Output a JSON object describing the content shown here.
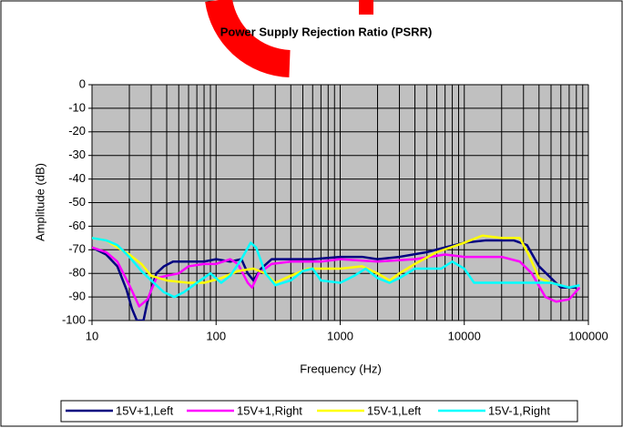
{
  "chart_data": {
    "type": "line",
    "title": "Power Supply Rejection Ratio (PSRR)",
    "x_label": "Frequency (Hz)",
    "y_label": "Amplitude (dB)",
    "xscale": "log",
    "xlim": [
      10,
      100000
    ],
    "xticks": [
      10,
      100,
      1000,
      10000,
      100000
    ],
    "ylim": [
      -100,
      0
    ],
    "yticks": [
      0,
      -10,
      -20,
      -30,
      -40,
      -50,
      -60,
      -70,
      -80,
      -90,
      -100
    ],
    "grid": true,
    "plot_background": "#c0c0c0",
    "legend": "bottom",
    "series": [
      {
        "name": "15V+1,Left",
        "color": "#000080",
        "x": [
          10,
          13,
          16,
          19,
          21,
          23,
          26,
          28,
          33,
          38,
          45,
          60,
          80,
          100,
          130,
          160,
          180,
          200,
          230,
          280,
          400,
          600,
          1000,
          1500,
          2000,
          3000,
          5000,
          7000,
          10000,
          15000,
          25000,
          32000,
          40000,
          50000,
          60000,
          80000
        ],
        "values": [
          -69,
          -72,
          -77,
          -87,
          -95,
          -100,
          -100,
          -92,
          -80,
          -77,
          -75,
          -75,
          -75,
          -74,
          -75,
          -74,
          -80,
          -83,
          -78,
          -74,
          -74,
          -74,
          -73,
          -73,
          -74,
          -73,
          -71,
          -69,
          -67,
          -66,
          -66,
          -68,
          -77,
          -82,
          -86,
          -86
        ]
      },
      {
        "name": "15V+1,Right",
        "color": "#ff00ff",
        "x": [
          10,
          13,
          16,
          20,
          24,
          28,
          33,
          40,
          50,
          60,
          80,
          100,
          130,
          150,
          180,
          195,
          220,
          280,
          400,
          700,
          1000,
          2000,
          4000,
          7000,
          10000,
          20000,
          28000,
          35000,
          45000,
          55000,
          70000,
          85000
        ],
        "values": [
          -69,
          -71,
          -75,
          -85,
          -94,
          -91,
          -82,
          -81,
          -80,
          -77,
          -76,
          -76,
          -74,
          -76,
          -84,
          -86,
          -80,
          -76,
          -75,
          -75,
          -74,
          -75,
          -74,
          -72,
          -73,
          -73,
          -75,
          -80,
          -90,
          -92,
          -91,
          -86
        ]
      },
      {
        "name": "15V-1,Left",
        "color": "#ffff00",
        "x": [
          10,
          13,
          16,
          20,
          25,
          30,
          40,
          60,
          80,
          110,
          150,
          200,
          250,
          300,
          400,
          550,
          800,
          1000,
          1500,
          2000,
          2500,
          3000,
          4000,
          6000,
          10000,
          14000,
          20000,
          28000,
          33000,
          40000,
          50000,
          60000
        ],
        "values": [
          -65,
          -66,
          -69,
          -72,
          -76,
          -81,
          -83,
          -84,
          -84,
          -82,
          -79,
          -78,
          -80,
          -84,
          -81,
          -78,
          -78,
          -78,
          -77,
          -80,
          -83,
          -80,
          -76,
          -71,
          -67,
          -64,
          -65,
          -65,
          -72,
          -82,
          -84,
          -85
        ]
      },
      {
        "name": "15V-1,Right",
        "color": "#00ffff",
        "x": [
          10,
          13,
          16,
          20,
          25,
          30,
          38,
          46,
          55,
          70,
          90,
          110,
          130,
          160,
          190,
          210,
          250,
          300,
          400,
          500,
          600,
          700,
          1000,
          1300,
          1600,
          2000,
          2500,
          3000,
          4000,
          5000,
          6500,
          8000,
          10000,
          12000,
          20000,
          50000,
          70000,
          85000
        ],
        "values": [
          -65,
          -66,
          -68,
          -73,
          -79,
          -83,
          -88,
          -90,
          -88,
          -84,
          -80,
          -84,
          -81,
          -74,
          -67,
          -69,
          -80,
          -85,
          -83,
          -79,
          -78,
          -83,
          -84,
          -81,
          -78,
          -82,
          -84,
          -82,
          -78,
          -78,
          -78,
          -75,
          -78,
          -84,
          -84,
          -84,
          -86,
          -85
        ]
      }
    ]
  }
}
